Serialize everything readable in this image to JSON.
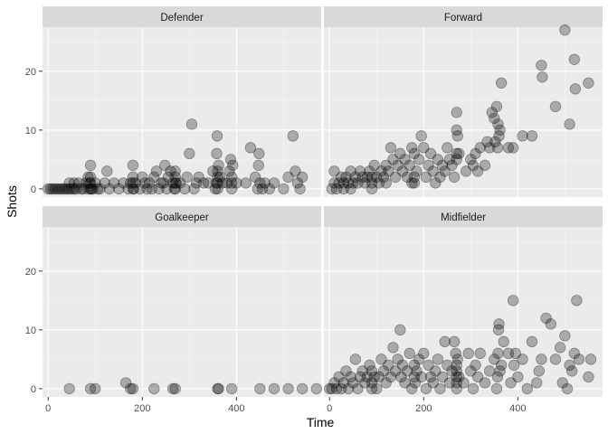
{
  "chart_data": {
    "type": "scatter",
    "xlabel": "Time",
    "ylabel": "Shots",
    "xlim": [
      -12,
      580
    ],
    "ylim": [
      -1.4,
      27.5
    ],
    "x_ticks": [
      0,
      200,
      400
    ],
    "y_ticks": [
      0,
      10,
      20
    ],
    "grid": true,
    "colors": {
      "panel_bg": "#ebebeb",
      "strip_bg": "#d9d9d9",
      "grid_major": "#ffffff",
      "point": "#000000"
    },
    "point_alpha": 0.28,
    "facets": [
      {
        "label": "Defender",
        "points": [
          [
            0,
            0
          ],
          [
            5,
            0
          ],
          [
            10,
            0
          ],
          [
            15,
            0
          ],
          [
            20,
            0
          ],
          [
            25,
            0
          ],
          [
            30,
            0
          ],
          [
            35,
            0
          ],
          [
            40,
            0
          ],
          [
            45,
            0
          ],
          [
            45,
            1
          ],
          [
            50,
            0
          ],
          [
            55,
            0
          ],
          [
            55,
            1
          ],
          [
            60,
            0
          ],
          [
            65,
            1
          ],
          [
            70,
            0
          ],
          [
            75,
            0
          ],
          [
            80,
            1
          ],
          [
            85,
            0
          ],
          [
            85,
            2
          ],
          [
            88,
            1
          ],
          [
            90,
            0
          ],
          [
            90,
            1
          ],
          [
            90,
            2
          ],
          [
            90,
            4
          ],
          [
            92,
            0
          ],
          [
            95,
            0
          ],
          [
            100,
            1
          ],
          [
            105,
            0
          ],
          [
            110,
            0
          ],
          [
            120,
            1
          ],
          [
            125,
            3
          ],
          [
            130,
            0
          ],
          [
            140,
            1
          ],
          [
            150,
            0
          ],
          [
            160,
            1
          ],
          [
            170,
            0
          ],
          [
            175,
            1
          ],
          [
            180,
            0
          ],
          [
            180,
            1
          ],
          [
            180,
            2
          ],
          [
            180,
            4
          ],
          [
            182,
            0
          ],
          [
            185,
            1
          ],
          [
            195,
            0
          ],
          [
            200,
            2
          ],
          [
            205,
            1
          ],
          [
            210,
            0
          ],
          [
            215,
            1
          ],
          [
            220,
            0
          ],
          [
            225,
            2
          ],
          [
            230,
            3
          ],
          [
            235,
            0
          ],
          [
            240,
            1
          ],
          [
            245,
            1
          ],
          [
            248,
            4
          ],
          [
            252,
            0
          ],
          [
            255,
            2
          ],
          [
            260,
            3
          ],
          [
            265,
            1
          ],
          [
            268,
            0
          ],
          [
            270,
            0
          ],
          [
            270,
            1
          ],
          [
            270,
            2
          ],
          [
            270,
            3
          ],
          [
            272,
            1
          ],
          [
            280,
            1
          ],
          [
            290,
            0
          ],
          [
            295,
            2
          ],
          [
            300,
            6
          ],
          [
            305,
            11
          ],
          [
            310,
            0
          ],
          [
            315,
            1
          ],
          [
            320,
            2
          ],
          [
            330,
            1
          ],
          [
            340,
            1
          ],
          [
            350,
            3
          ],
          [
            355,
            0
          ],
          [
            357,
            1
          ],
          [
            358,
            6
          ],
          [
            359,
            9
          ],
          [
            360,
            0
          ],
          [
            360,
            1
          ],
          [
            360,
            2
          ],
          [
            360,
            3
          ],
          [
            362,
            4
          ],
          [
            365,
            2
          ],
          [
            370,
            1
          ],
          [
            380,
            1
          ],
          [
            385,
            3
          ],
          [
            388,
            5
          ],
          [
            390,
            0
          ],
          [
            390,
            1
          ],
          [
            390,
            2
          ],
          [
            392,
            4
          ],
          [
            400,
            1
          ],
          [
            420,
            1
          ],
          [
            430,
            7
          ],
          [
            440,
            2
          ],
          [
            445,
            0
          ],
          [
            447,
            4
          ],
          [
            448,
            6
          ],
          [
            450,
            1
          ],
          [
            455,
            0
          ],
          [
            460,
            1
          ],
          [
            470,
            0
          ],
          [
            480,
            1
          ],
          [
            500,
            0
          ],
          [
            510,
            2
          ],
          [
            520,
            9
          ],
          [
            525,
            3
          ],
          [
            530,
            1
          ],
          [
            535,
            0
          ],
          [
            540,
            2
          ]
        ]
      },
      {
        "label": "Forward",
        "points": [
          [
            5,
            0
          ],
          [
            10,
            1
          ],
          [
            10,
            3
          ],
          [
            15,
            0
          ],
          [
            20,
            1
          ],
          [
            25,
            2
          ],
          [
            30,
            1
          ],
          [
            30,
            0
          ],
          [
            35,
            2
          ],
          [
            40,
            1
          ],
          [
            45,
            3
          ],
          [
            45,
            0
          ],
          [
            50,
            1
          ],
          [
            55,
            2
          ],
          [
            60,
            1
          ],
          [
            65,
            3
          ],
          [
            70,
            2
          ],
          [
            75,
            1
          ],
          [
            80,
            2
          ],
          [
            85,
            3
          ],
          [
            90,
            0
          ],
          [
            90,
            1
          ],
          [
            90,
            2
          ],
          [
            95,
            4
          ],
          [
            100,
            2
          ],
          [
            105,
            1
          ],
          [
            110,
            3
          ],
          [
            115,
            2
          ],
          [
            120,
            4
          ],
          [
            120,
            1
          ],
          [
            125,
            3
          ],
          [
            130,
            7
          ],
          [
            135,
            5
          ],
          [
            140,
            2
          ],
          [
            145,
            4
          ],
          [
            150,
            6
          ],
          [
            155,
            3
          ],
          [
            160,
            5
          ],
          [
            165,
            2
          ],
          [
            170,
            4
          ],
          [
            175,
            7
          ],
          [
            175,
            1
          ],
          [
            180,
            1
          ],
          [
            180,
            2
          ],
          [
            180,
            6
          ],
          [
            185,
            3
          ],
          [
            190,
            5
          ],
          [
            195,
            9
          ],
          [
            200,
            7
          ],
          [
            205,
            2
          ],
          [
            210,
            4
          ],
          [
            215,
            6
          ],
          [
            220,
            3
          ],
          [
            225,
            1
          ],
          [
            230,
            5
          ],
          [
            235,
            2
          ],
          [
            240,
            4
          ],
          [
            245,
            3
          ],
          [
            250,
            7
          ],
          [
            255,
            5
          ],
          [
            260,
            4
          ],
          [
            265,
            2
          ],
          [
            270,
            5
          ],
          [
            270,
            6
          ],
          [
            270,
            10
          ],
          [
            270,
            13
          ],
          [
            272,
            9
          ],
          [
            275,
            6
          ],
          [
            290,
            3
          ],
          [
            300,
            5
          ],
          [
            305,
            4
          ],
          [
            310,
            6
          ],
          [
            315,
            3
          ],
          [
            320,
            7
          ],
          [
            330,
            4
          ],
          [
            335,
            8
          ],
          [
            340,
            7
          ],
          [
            345,
            13
          ],
          [
            350,
            12
          ],
          [
            352,
            8
          ],
          [
            355,
            14
          ],
          [
            357,
            7
          ],
          [
            358,
            11
          ],
          [
            360,
            9
          ],
          [
            362,
            10
          ],
          [
            365,
            18
          ],
          [
            380,
            7
          ],
          [
            390,
            7
          ],
          [
            410,
            9
          ],
          [
            430,
            9
          ],
          [
            450,
            21
          ],
          [
            452,
            19
          ],
          [
            480,
            14
          ],
          [
            500,
            27
          ],
          [
            510,
            11
          ],
          [
            520,
            22
          ],
          [
            522,
            17
          ],
          [
            550,
            18
          ]
        ]
      },
      {
        "label": "Goalkeeper",
        "points": [
          [
            45,
            0
          ],
          [
            90,
            0
          ],
          [
            100,
            0
          ],
          [
            165,
            1
          ],
          [
            175,
            0
          ],
          [
            180,
            0
          ],
          [
            225,
            0
          ],
          [
            265,
            0
          ],
          [
            270,
            0
          ],
          [
            360,
            0
          ],
          [
            362,
            0
          ],
          [
            390,
            0
          ],
          [
            450,
            0
          ],
          [
            480,
            0
          ],
          [
            510,
            0
          ],
          [
            540,
            0
          ],
          [
            570,
            0
          ]
        ]
      },
      {
        "label": "Midfielder",
        "points": [
          [
            0,
            0
          ],
          [
            5,
            0
          ],
          [
            10,
            1
          ],
          [
            15,
            0
          ],
          [
            20,
            2
          ],
          [
            25,
            0
          ],
          [
            30,
            1
          ],
          [
            35,
            3
          ],
          [
            40,
            0
          ],
          [
            45,
            2
          ],
          [
            50,
            1
          ],
          [
            55,
            5
          ],
          [
            60,
            0
          ],
          [
            65,
            2
          ],
          [
            70,
            3
          ],
          [
            75,
            1
          ],
          [
            80,
            2
          ],
          [
            85,
            4
          ],
          [
            90,
            0
          ],
          [
            90,
            1
          ],
          [
            90,
            3
          ],
          [
            95,
            2
          ],
          [
            100,
            0
          ],
          [
            105,
            2
          ],
          [
            110,
            5
          ],
          [
            115,
            3
          ],
          [
            120,
            1
          ],
          [
            125,
            4
          ],
          [
            130,
            2
          ],
          [
            135,
            7
          ],
          [
            140,
            3
          ],
          [
            145,
            5
          ],
          [
            150,
            10
          ],
          [
            152,
            2
          ],
          [
            155,
            4
          ],
          [
            160,
            1
          ],
          [
            165,
            3
          ],
          [
            170,
            6
          ],
          [
            175,
            0
          ],
          [
            180,
            2
          ],
          [
            180,
            4
          ],
          [
            182,
            1
          ],
          [
            185,
            3
          ],
          [
            190,
            5
          ],
          [
            195,
            2
          ],
          [
            200,
            6
          ],
          [
            205,
            0
          ],
          [
            210,
            4
          ],
          [
            215,
            2
          ],
          [
            220,
            1
          ],
          [
            225,
            3
          ],
          [
            230,
            5
          ],
          [
            235,
            0
          ],
          [
            240,
            2
          ],
          [
            245,
            8
          ],
          [
            250,
            4
          ],
          [
            255,
            1
          ],
          [
            260,
            3
          ],
          [
            265,
            8
          ],
          [
            268,
            6
          ],
          [
            270,
            0
          ],
          [
            270,
            1
          ],
          [
            270,
            2
          ],
          [
            270,
            3
          ],
          [
            270,
            4
          ],
          [
            272,
            5
          ],
          [
            275,
            2
          ],
          [
            285,
            1
          ],
          [
            295,
            6
          ],
          [
            300,
            3
          ],
          [
            305,
            0
          ],
          [
            310,
            4
          ],
          [
            315,
            2
          ],
          [
            320,
            6
          ],
          [
            330,
            1
          ],
          [
            340,
            3
          ],
          [
            350,
            5
          ],
          [
            355,
            0
          ],
          [
            357,
            2
          ],
          [
            358,
            6
          ],
          [
            359,
            10
          ],
          [
            360,
            11
          ],
          [
            362,
            3
          ],
          [
            365,
            4
          ],
          [
            370,
            8
          ],
          [
            380,
            6
          ],
          [
            385,
            1
          ],
          [
            390,
            15
          ],
          [
            392,
            4
          ],
          [
            395,
            6
          ],
          [
            400,
            2
          ],
          [
            410,
            5
          ],
          [
            420,
            0
          ],
          [
            430,
            8
          ],
          [
            440,
            1
          ],
          [
            445,
            3
          ],
          [
            450,
            5
          ],
          [
            460,
            12
          ],
          [
            470,
            11
          ],
          [
            480,
            5
          ],
          [
            490,
            7
          ],
          [
            495,
            1
          ],
          [
            500,
            9
          ],
          [
            505,
            0
          ],
          [
            510,
            4
          ],
          [
            515,
            3
          ],
          [
            520,
            6
          ],
          [
            525,
            15
          ],
          [
            530,
            5
          ],
          [
            550,
            2
          ],
          [
            555,
            5
          ]
        ]
      }
    ]
  }
}
